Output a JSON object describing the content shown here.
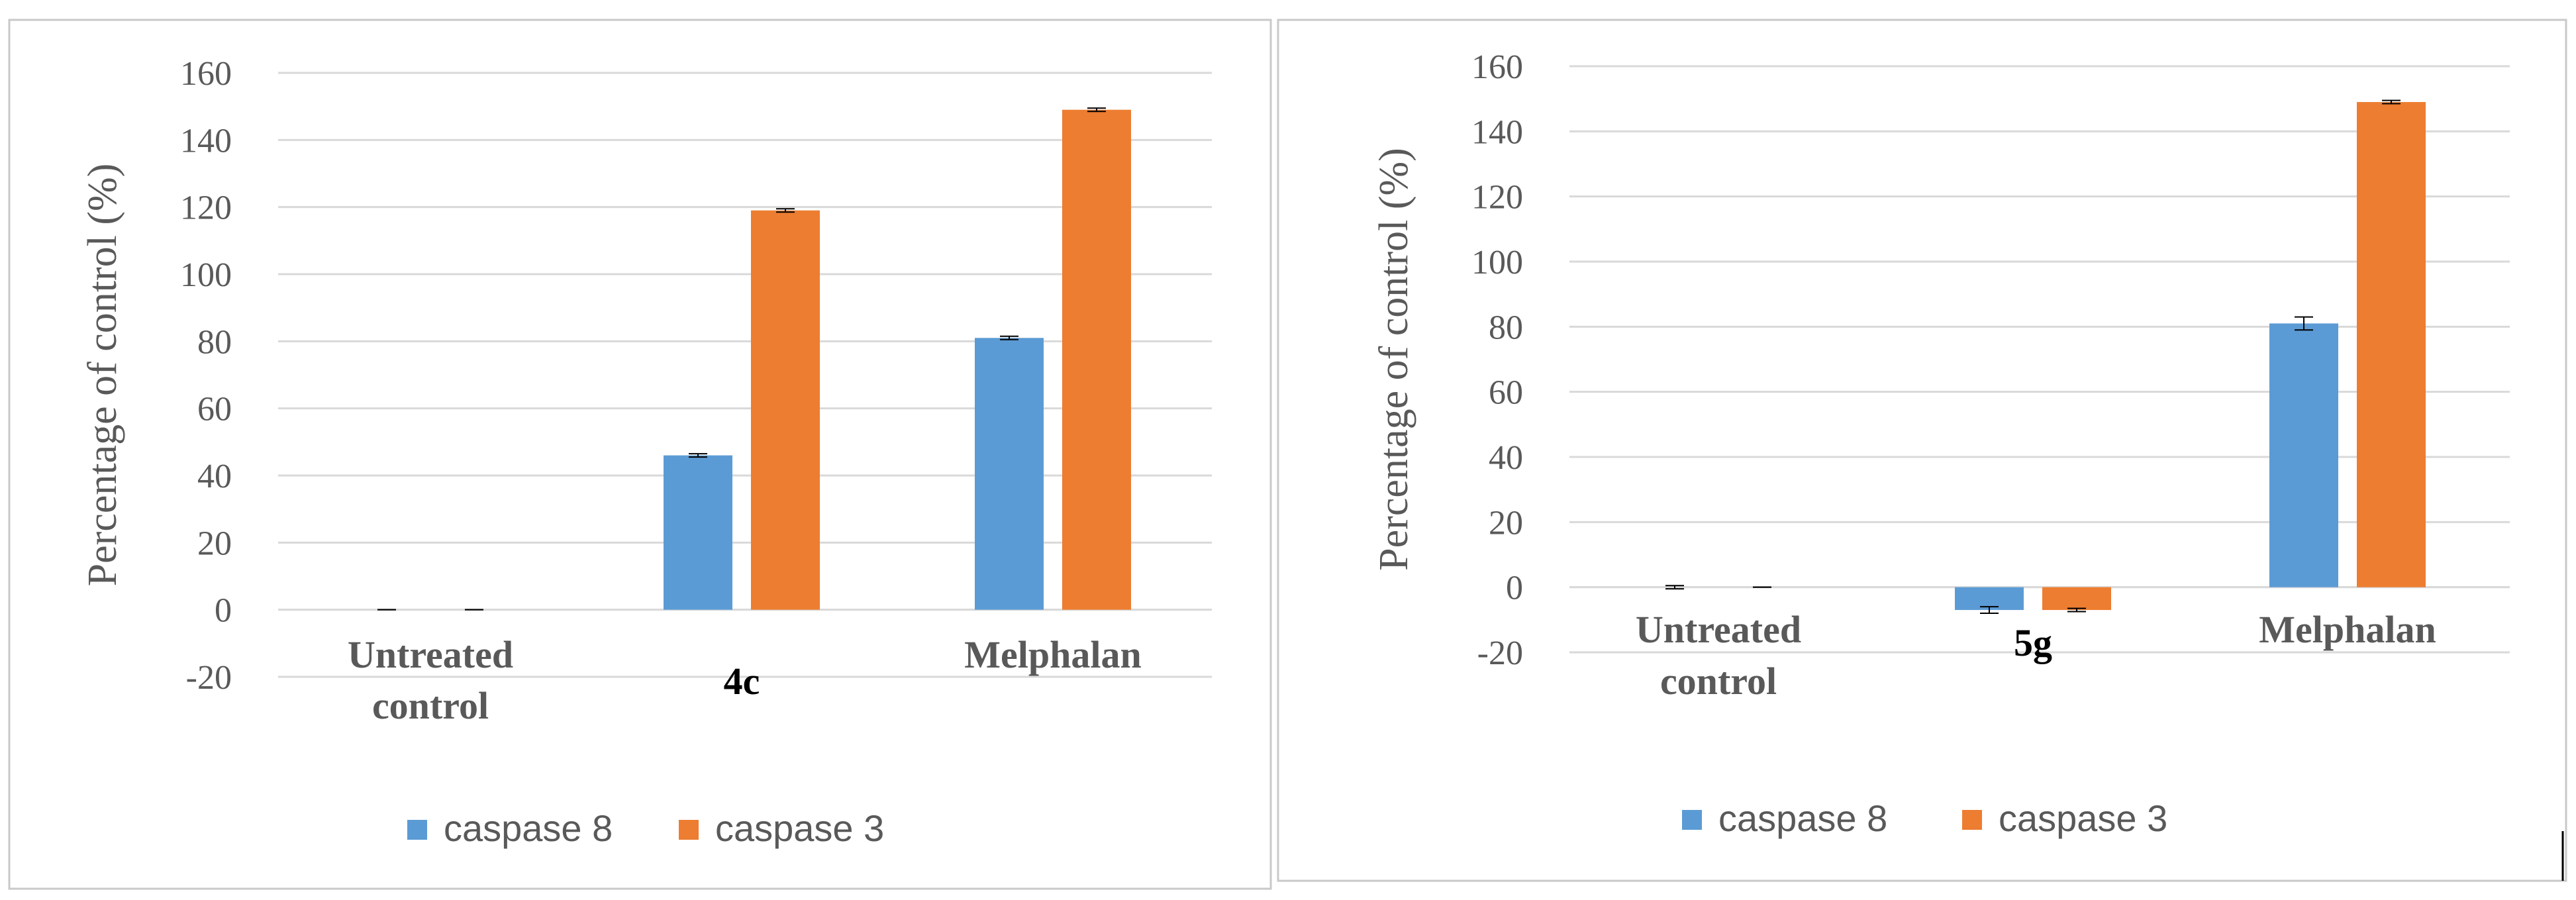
{
  "chart_data": [
    {
      "type": "bar",
      "categories": [
        [
          "Untreated",
          "control"
        ],
        [
          "4c"
        ],
        [
          "Melphalan"
        ]
      ],
      "series": [
        {
          "name": "caspase 8",
          "values": [
            0,
            46,
            81
          ],
          "errors": [
            0,
            0.5,
            0.5
          ]
        },
        {
          "name": "caspase 3",
          "values": [
            0,
            119,
            149
          ],
          "errors": [
            0,
            0.5,
            0.5
          ]
        }
      ],
      "ylabel": "Percentage of control (%)",
      "ylim": [
        -20,
        160
      ],
      "yticks": [
        -20,
        0,
        20,
        40,
        60,
        80,
        100,
        120,
        140,
        160
      ],
      "grid": true,
      "legend": "bottom",
      "colors": [
        "#5B9BD5",
        "#ED7D31"
      ]
    },
    {
      "type": "bar",
      "categories": [
        [
          "Untreated",
          "control"
        ],
        [
          "5g"
        ],
        [
          "Melphalan"
        ]
      ],
      "series": [
        {
          "name": "caspase 8",
          "values": [
            0,
            -7,
            81
          ],
          "errors": [
            0.5,
            1,
            2
          ]
        },
        {
          "name": "caspase 3",
          "values": [
            0,
            -7,
            149
          ],
          "errors": [
            0,
            0.5,
            0.5
          ]
        }
      ],
      "ylabel": "Percentage of control (%)",
      "ylim": [
        -20,
        160
      ],
      "yticks": [
        -20,
        0,
        20,
        40,
        60,
        80,
        100,
        120,
        140,
        160
      ],
      "grid": true,
      "legend": "bottom",
      "colors": [
        "#5B9BD5",
        "#ED7D31"
      ]
    }
  ]
}
